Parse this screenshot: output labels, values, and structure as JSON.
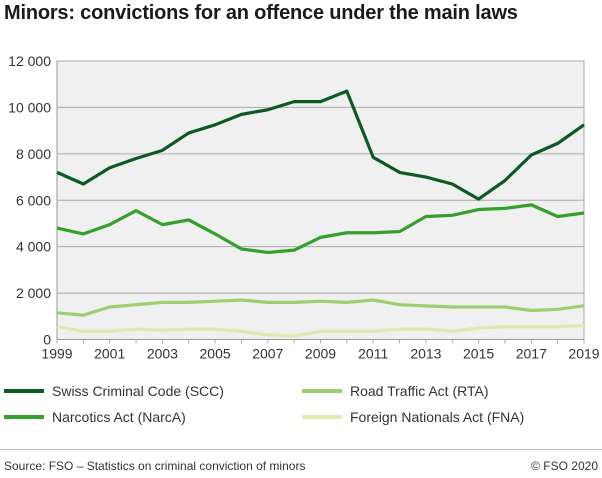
{
  "chart_data": {
    "type": "line",
    "title": "Minors: convictions for an offence under the main laws",
    "x": [
      1999,
      2000,
      2001,
      2002,
      2003,
      2004,
      2005,
      2006,
      2007,
      2008,
      2009,
      2010,
      2011,
      2012,
      2013,
      2014,
      2015,
      2016,
      2017,
      2018,
      2019
    ],
    "xticks": [
      "1999",
      "2001",
      "2003",
      "2005",
      "2007",
      "2009",
      "2011",
      "2013",
      "2015",
      "2017",
      "2019"
    ],
    "yticks": [
      "0",
      "2 000",
      "4 000",
      "6 000",
      "8 000",
      "10 000",
      "12 000"
    ],
    "ylim": [
      0,
      12000
    ],
    "grid": true,
    "legend_position": "bottom",
    "series": [
      {
        "name": "Swiss Criminal Code (SCC)",
        "color": "#0b5a22",
        "values": [
          7200,
          6700,
          7400,
          7800,
          8150,
          8900,
          9250,
          9700,
          9900,
          10250,
          10250,
          10700,
          7850,
          7200,
          7000,
          6700,
          6050,
          6850,
          7950,
          8450,
          9250
        ]
      },
      {
        "name": "Narcotics Act (NarcA)",
        "color": "#34a02c",
        "values": [
          4800,
          4550,
          4950,
          5550,
          4950,
          5150,
          4550,
          3900,
          3750,
          3850,
          4400,
          4600,
          4600,
          4650,
          5300,
          5350,
          5600,
          5650,
          5800,
          5300,
          5450
        ]
      },
      {
        "name": "Road Traffic Act (RTA)",
        "color": "#9dcf70",
        "values": [
          1150,
          1050,
          1400,
          1500,
          1600,
          1600,
          1650,
          1700,
          1600,
          1600,
          1650,
          1600,
          1700,
          1500,
          1450,
          1400,
          1400,
          1400,
          1250,
          1300,
          1450
        ]
      },
      {
        "name": "Foreign Nationals Act (FNA)",
        "color": "#dcebaa",
        "values": [
          550,
          350,
          350,
          450,
          400,
          450,
          450,
          350,
          200,
          150,
          350,
          350,
          350,
          450,
          450,
          350,
          500,
          550,
          550,
          550,
          600
        ]
      }
    ]
  },
  "footer": {
    "source": "Source: FSO – Statistics on criminal conviction of minors",
    "copyright": "© FSO 2020"
  }
}
